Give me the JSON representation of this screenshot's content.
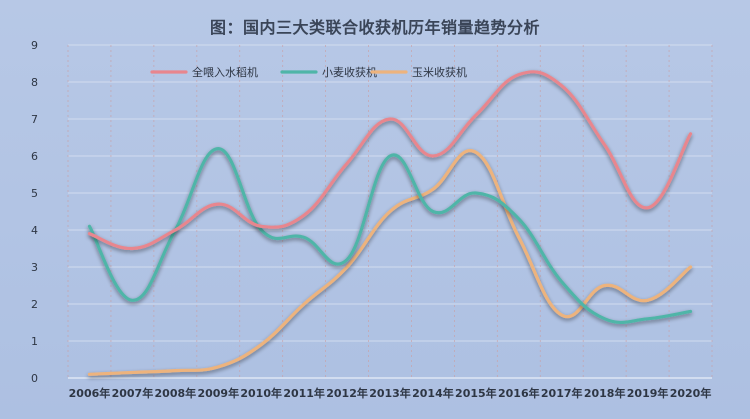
{
  "chart_data": {
    "type": "line",
    "title": "图：国内三大类联合收获机历年销量趋势分析",
    "categories": [
      "2006年",
      "2007年",
      "2008年",
      "2009年",
      "2010年",
      "2011年",
      "2012年",
      "2013年",
      "2014年",
      "2015年",
      "2016年",
      "2017年",
      "2018年",
      "2019年",
      "2020年"
    ],
    "ylim": [
      0,
      9
    ],
    "yticks": [
      "0",
      "1",
      "2",
      "3",
      "4",
      "5",
      "6",
      "7",
      "8",
      "9"
    ],
    "grid": true,
    "legend_position": "top-left",
    "series": [
      {
        "name": "全喂入水稻机",
        "color": "#e8868e",
        "values": [
          3.9,
          3.5,
          4.0,
          4.7,
          4.1,
          4.4,
          5.8,
          7.0,
          6.0,
          7.1,
          8.2,
          7.9,
          6.3,
          4.6,
          6.6
        ]
      },
      {
        "name": "小麦收获机",
        "color": "#4fb5a8",
        "values": [
          4.1,
          2.1,
          4.0,
          6.2,
          4.0,
          3.8,
          3.2,
          6.0,
          4.5,
          5.0,
          4.3,
          2.6,
          1.6,
          1.6,
          1.8
        ]
      },
      {
        "name": "玉米收获机",
        "color": "#edb37d",
        "values": [
          0.1,
          0.15,
          0.2,
          0.3,
          0.9,
          2.0,
          3.0,
          4.5,
          5.1,
          6.1,
          3.8,
          1.7,
          2.5,
          2.1,
          3.0
        ]
      }
    ]
  }
}
